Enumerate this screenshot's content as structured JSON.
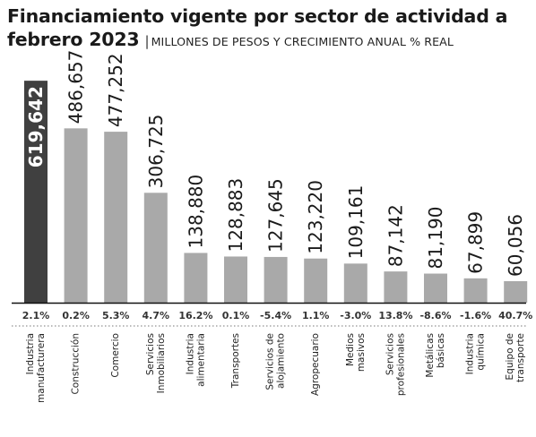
{
  "title_line1": "Financiamiento vigente por sector de actividad a",
  "title_line2": "febrero 2023",
  "title_separator": "|",
  "subtitle": "MILLONES DE PESOS Y CRECIMIENTO ANUAL % REAL",
  "colors": {
    "highlight_bar": "#404040",
    "bar": "#a9a9a9",
    "baseline": "#111111",
    "dotted_line": "#777777"
  },
  "chart_data": {
    "type": "bar",
    "title": "Financiamiento vigente por sector de actividad a febrero 2023",
    "subtitle": "MILLONES DE PESOS Y CRECIMIENTO ANUAL % REAL",
    "categories": [
      [
        "Industria",
        "manufacturera"
      ],
      [
        "Construcción"
      ],
      [
        "Comercio"
      ],
      [
        "Servicios",
        "Inmobiliarios"
      ],
      [
        "Industria",
        "alimentaria"
      ],
      [
        "Transportes"
      ],
      [
        "Servicios de",
        "alojamiento"
      ],
      [
        "Agropecuario"
      ],
      [
        "Medios",
        "masivos"
      ],
      [
        "Servicios",
        "profesionales"
      ],
      [
        "Metálicas",
        "básicas"
      ],
      [
        "Industria",
        "química"
      ],
      [
        "Equipo de",
        "transporte"
      ]
    ],
    "values": [
      619642,
      486657,
      477252,
      306725,
      138880,
      128883,
      127645,
      123220,
      109161,
      87142,
      81190,
      67899,
      60056
    ],
    "value_labels": [
      "619,642",
      "486,657",
      "477,252",
      "306,725",
      "138,880",
      "128,883",
      "127,645",
      "123,220",
      "109,161",
      "87,142",
      "81,190",
      "67,899",
      "60,056"
    ],
    "growth_labels": [
      "2.1%",
      "0.2%",
      "5.3%",
      "4.7%",
      "16.2%",
      "0.1%",
      "-5.4%",
      "1.1%",
      "-3.0%",
      "13.8%",
      "-8.6%",
      "-1.6%",
      "40.7%"
    ],
    "highlight_index": 0,
    "ylim": [
      0,
      650000
    ],
    "grid": false,
    "legend": "none"
  }
}
